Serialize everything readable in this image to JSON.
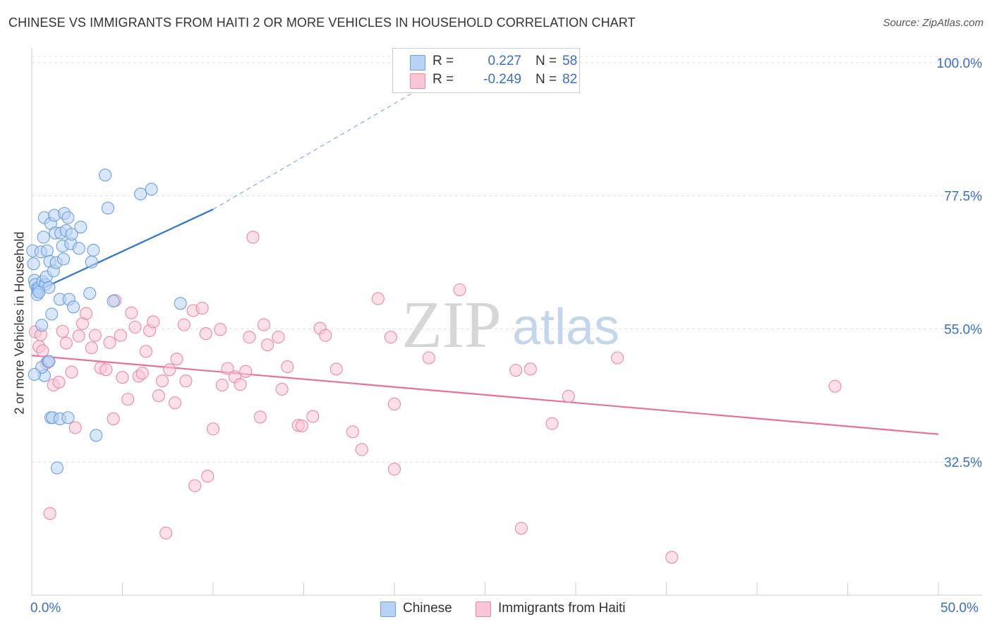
{
  "title": "CHINESE VS IMMIGRANTS FROM HAITI 2 OR MORE VEHICLES IN HOUSEHOLD CORRELATION CHART",
  "source": "Source: ZipAtlas.com",
  "watermark": {
    "zip": "ZIP",
    "atlas": "atlas"
  },
  "legend": {
    "rows": [
      {
        "swatch_color": "#b8d3f5",
        "swatch_border": "#6e9fdc",
        "r_label": "R =",
        "r_value": "0.227",
        "n_label": "N =",
        "n_value": "58"
      },
      {
        "swatch_color": "#f9c6d6",
        "swatch_border": "#e889a8",
        "r_label": "R =",
        "r_value": "-0.249",
        "n_label": "N =",
        "n_value": "82"
      }
    ]
  },
  "bottom_legend": [
    {
      "label": "Chinese",
      "swatch_color": "#b8d3f5",
      "swatch_border": "#6e9fdc"
    },
    {
      "label": "Immigrants from Haiti",
      "swatch_color": "#f9c6d6",
      "swatch_border": "#e889a8"
    }
  ],
  "chart_data": {
    "type": "scatter",
    "title": "CHINESE VS IMMIGRANTS FROM HAITI 2 OR MORE VEHICLES IN HOUSEHOLD CORRELATION CHART",
    "xlabel": "",
    "ylabel": "2 or more Vehicles in Household",
    "xlim": [
      0,
      50
    ],
    "ylim": [
      10,
      102
    ],
    "x_tick_labels": {
      "min": "0.0%",
      "max": "50.0%"
    },
    "y_ticks": [
      {
        "value": 100,
        "label": "100.0%"
      },
      {
        "value": 77.5,
        "label": "77.5%"
      },
      {
        "value": 55,
        "label": "55.0%"
      },
      {
        "value": 32.5,
        "label": "32.5%"
      }
    ],
    "grid": true,
    "legend_position": "top-center",
    "series": [
      {
        "name": "Chinese",
        "color": "#6e9fdc",
        "fill": "#b8d3f5",
        "trend_color": "#2f74d0",
        "R": 0.227,
        "N": 58,
        "trend": {
          "x0": 0,
          "y0": 61.0,
          "x1": 10.0,
          "y1": 75.2,
          "dash_x1": 25.0,
          "dash_y1": 102.0
        },
        "points": [
          [
            0.05,
            68.2
          ],
          [
            0.1,
            66.0
          ],
          [
            0.15,
            63.2
          ],
          [
            0.2,
            62.5
          ],
          [
            0.3,
            61.8
          ],
          [
            0.35,
            61.5
          ],
          [
            0.4,
            62.0
          ],
          [
            0.5,
            68.0
          ],
          [
            0.55,
            55.6
          ],
          [
            0.6,
            63.0
          ],
          [
            0.7,
            47.1
          ],
          [
            0.75,
            62.5
          ],
          [
            0.8,
            63.8
          ],
          [
            0.65,
            70.5
          ],
          [
            0.7,
            73.8
          ],
          [
            0.85,
            68.2
          ],
          [
            0.95,
            62.0
          ],
          [
            1.0,
            66.4
          ],
          [
            1.05,
            72.8
          ],
          [
            1.1,
            57.5
          ],
          [
            1.2,
            64.8
          ],
          [
            1.25,
            74.2
          ],
          [
            1.3,
            71.2
          ],
          [
            1.35,
            66.2
          ],
          [
            1.55,
            60.0
          ],
          [
            1.6,
            71.2
          ],
          [
            1.7,
            69.0
          ],
          [
            1.75,
            66.8
          ],
          [
            1.8,
            74.5
          ],
          [
            1.9,
            71.6
          ],
          [
            2.0,
            73.8
          ],
          [
            2.05,
            60.0
          ],
          [
            2.15,
            69.4
          ],
          [
            2.2,
            71.0
          ],
          [
            2.3,
            58.7
          ],
          [
            2.6,
            68.6
          ],
          [
            2.7,
            72.2
          ],
          [
            3.2,
            61.0
          ],
          [
            3.3,
            66.3
          ],
          [
            3.4,
            68.3
          ],
          [
            3.55,
            37.0
          ],
          [
            4.05,
            81.0
          ],
          [
            4.2,
            75.4
          ],
          [
            4.5,
            59.7
          ],
          [
            6.0,
            77.8
          ],
          [
            6.6,
            78.6
          ],
          [
            8.2,
            59.3
          ],
          [
            0.55,
            48.5
          ],
          [
            0.9,
            49.5
          ],
          [
            0.95,
            49.5
          ],
          [
            1.05,
            40.0
          ],
          [
            1.15,
            40.0
          ],
          [
            1.4,
            31.5
          ],
          [
            1.55,
            39.8
          ],
          [
            2.0,
            40.0
          ],
          [
            0.15,
            47.3
          ],
          [
            0.3,
            60.8
          ],
          [
            0.4,
            61.2
          ]
        ]
      },
      {
        "name": "Immigrants from Haiti",
        "color": "#e889a8",
        "fill": "#f9c6d6",
        "trend_color": "#e8709a",
        "R": -0.249,
        "N": 82,
        "trend": {
          "x0": 0,
          "y0": 50.5,
          "x1": 50,
          "y1": 37.2
        },
        "points": [
          [
            0.2,
            54.5
          ],
          [
            0.4,
            52.0
          ],
          [
            0.6,
            51.3
          ],
          [
            0.8,
            49.2
          ],
          [
            1.0,
            23.8
          ],
          [
            1.2,
            45.5
          ],
          [
            1.5,
            46.0
          ],
          [
            1.7,
            54.6
          ],
          [
            1.9,
            52.6
          ],
          [
            2.2,
            47.7
          ],
          [
            2.4,
            38.3
          ],
          [
            2.6,
            53.8
          ],
          [
            2.8,
            55.9
          ],
          [
            3.0,
            57.6
          ],
          [
            3.3,
            51.8
          ],
          [
            3.5,
            53.9
          ],
          [
            3.8,
            48.4
          ],
          [
            4.1,
            48.1
          ],
          [
            4.3,
            52.7
          ],
          [
            4.6,
            59.8
          ],
          [
            4.5,
            39.8
          ],
          [
            4.9,
            53.9
          ],
          [
            5.0,
            46.8
          ],
          [
            5.3,
            43.1
          ],
          [
            5.5,
            57.7
          ],
          [
            5.7,
            55.3
          ],
          [
            5.9,
            47.0
          ],
          [
            6.1,
            47.5
          ],
          [
            6.3,
            51.2
          ],
          [
            6.5,
            54.7
          ],
          [
            6.7,
            56.2
          ],
          [
            7.0,
            43.7
          ],
          [
            7.2,
            46.2
          ],
          [
            7.4,
            20.5
          ],
          [
            7.6,
            48.1
          ],
          [
            7.9,
            42.5
          ],
          [
            8.0,
            49.9
          ],
          [
            8.4,
            55.7
          ],
          [
            8.5,
            46.2
          ],
          [
            8.9,
            58.1
          ],
          [
            9.0,
            28.5
          ],
          [
            9.4,
            58.5
          ],
          [
            9.7,
            30.1
          ],
          [
            9.6,
            54.2
          ],
          [
            10.0,
            38.1
          ],
          [
            10.4,
            54.9
          ],
          [
            10.5,
            45.5
          ],
          [
            10.8,
            48.3
          ],
          [
            11.2,
            46.9
          ],
          [
            11.5,
            45.6
          ],
          [
            11.8,
            47.8
          ],
          [
            12.0,
            53.6
          ],
          [
            12.2,
            70.5
          ],
          [
            12.6,
            40.1
          ],
          [
            12.8,
            55.7
          ],
          [
            13.0,
            52.3
          ],
          [
            13.6,
            53.6
          ],
          [
            13.8,
            44.8
          ],
          [
            14.1,
            48.6
          ],
          [
            14.7,
            38.7
          ],
          [
            14.9,
            38.6
          ],
          [
            15.5,
            40.2
          ],
          [
            15.9,
            55.1
          ],
          [
            16.2,
            53.9
          ],
          [
            16.8,
            48.2
          ],
          [
            17.7,
            37.6
          ],
          [
            18.2,
            34.6
          ],
          [
            19.1,
            60.1
          ],
          [
            19.8,
            53.6
          ],
          [
            20.0,
            31.3
          ],
          [
            20.0,
            42.3
          ],
          [
            21.9,
            50.1
          ],
          [
            23.6,
            61.6
          ],
          [
            26.7,
            48.0
          ],
          [
            27.0,
            21.3
          ],
          [
            27.5,
            48.2
          ],
          [
            28.7,
            39.0
          ],
          [
            29.6,
            43.6
          ],
          [
            32.3,
            50.1
          ],
          [
            35.3,
            16.4
          ],
          [
            44.3,
            45.3
          ],
          [
            0.5,
            54.0
          ]
        ]
      }
    ]
  }
}
